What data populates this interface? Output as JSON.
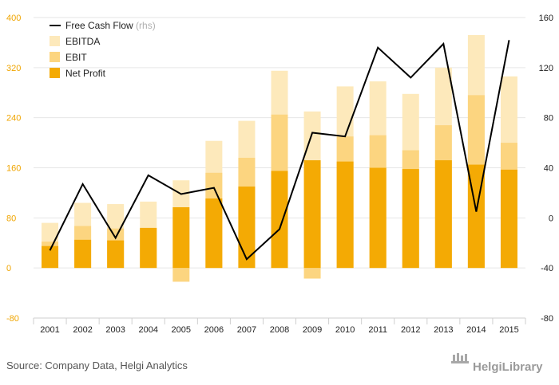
{
  "chart_data": {
    "type": "bar",
    "categories": [
      "2001",
      "2002",
      "2003",
      "2004",
      "2005",
      "2006",
      "2007",
      "2008",
      "2009",
      "2010",
      "2011",
      "2012",
      "2013",
      "2014",
      "2015"
    ],
    "series": [
      {
        "name": "EBITDA",
        "kind": "bar",
        "axis": "left",
        "color": "#fde9bb",
        "values": [
          72,
          104,
          102,
          106,
          140,
          203,
          235,
          315,
          250,
          290,
          298,
          278,
          320,
          372,
          306
        ]
      },
      {
        "name": "EBIT",
        "kind": "bar",
        "axis": "left",
        "color": "#fcd580",
        "values": [
          42,
          67,
          63,
          63,
          -22,
          152,
          176,
          245,
          -17,
          210,
          212,
          188,
          228,
          276,
          200
        ]
      },
      {
        "name": "Net Profit",
        "kind": "bar",
        "axis": "left",
        "color": "#f4aa04",
        "values": [
          35,
          45,
          44,
          64,
          97,
          111,
          130,
          155,
          172,
          170,
          160,
          158,
          172,
          165,
          157
        ]
      },
      {
        "name": "Free Cash Flow",
        "kind": "line",
        "axis": "right",
        "color": "#000000",
        "values": [
          -26,
          27,
          -16,
          34,
          19,
          24,
          -33,
          -9,
          68,
          65,
          136,
          112,
          139,
          5,
          142
        ]
      }
    ],
    "legend_note": "(rhs)",
    "left_axis": {
      "min": -80,
      "max": 400,
      "ticks": [
        "-80",
        "0",
        "80",
        "160",
        "240",
        "320",
        "400"
      ]
    },
    "right_axis": {
      "min": -80,
      "max": 160,
      "ticks": [
        "-80",
        "-40",
        "0",
        "40",
        "80",
        "120",
        "160"
      ]
    },
    "grid": true,
    "legend_position": "top-left"
  },
  "source": "Source: Company Data, Helgi Analytics",
  "brand": "HelgiLibrary"
}
